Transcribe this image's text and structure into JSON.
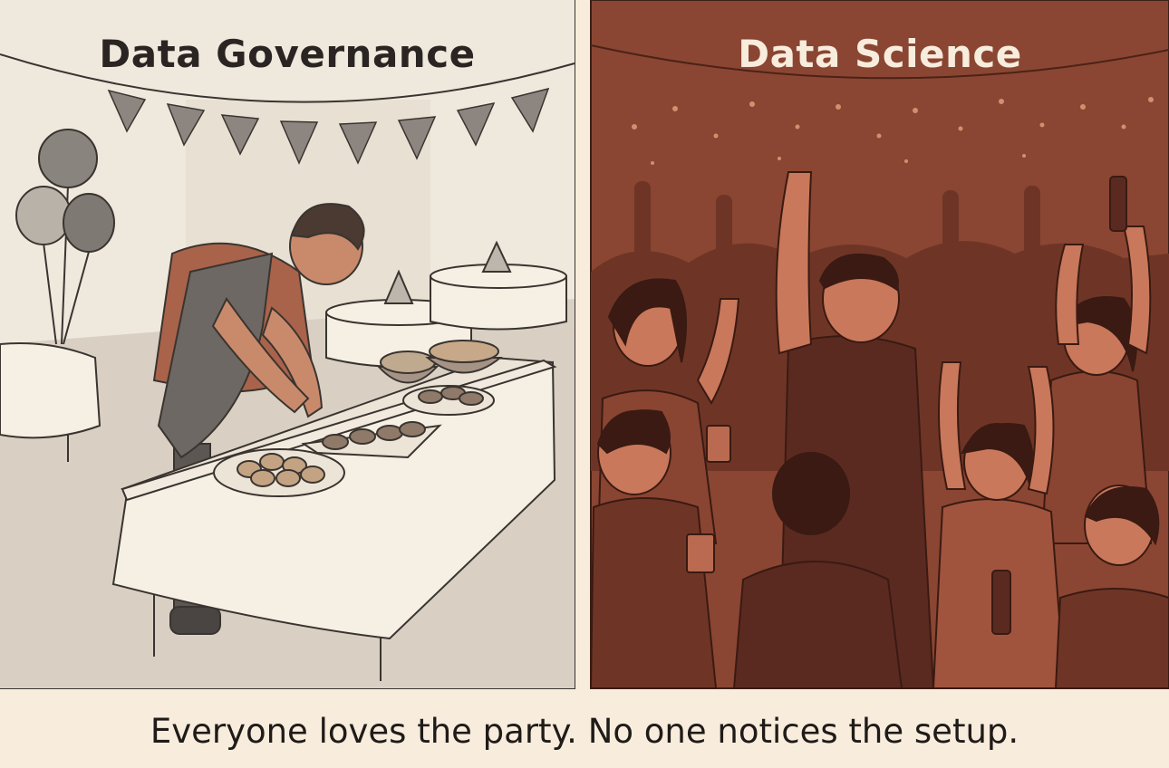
{
  "panels": {
    "left": {
      "title": "Data Governance",
      "colors": {
        "background": "#e6ddd0",
        "wall": "#efe8dd",
        "tablecloth": "#f6efe4",
        "shirt": "#a9634a",
        "apron": "#6d6863",
        "line": "#3a3430"
      }
    },
    "right": {
      "title": "Data Science",
      "colors": {
        "background": "#8a4632",
        "crowd_back": "#6e3526",
        "crowd_front": "#b9644a",
        "skin": "#c9785b",
        "title": "#f8ecdd"
      }
    }
  },
  "caption": "Everyone loves the party. No one notices the setup.",
  "colors": {
    "page_background": "#f8ecdd",
    "text": "#1f1b18"
  }
}
